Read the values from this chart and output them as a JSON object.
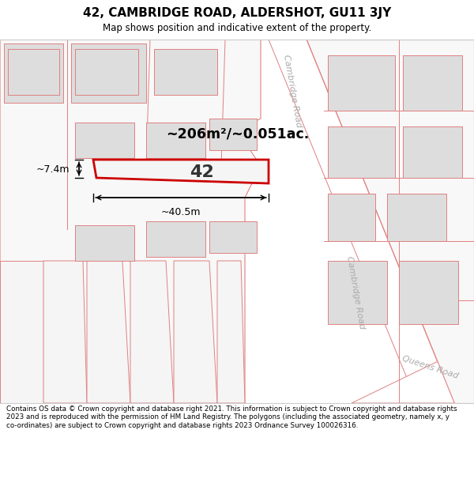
{
  "title_line1": "42, CAMBRIDGE ROAD, ALDERSHOT, GU11 3JY",
  "title_line2": "Map shows position and indicative extent of the property.",
  "footer": "Contains OS data © Crown copyright and database right 2021. This information is subject to Crown copyright and database rights 2023 and is reproduced with the permission of HM Land Registry. The polygons (including the associated geometry, namely x, y co-ordinates) are subject to Crown copyright and database rights 2023 Ordnance Survey 100026316.",
  "area_text": "~206m²/~0.051ac.",
  "label_42": "42",
  "dim_width": "~40.5m",
  "dim_height": "~7.4m",
  "road_label_cambridge": "Cambridge Road",
  "road_label_queens": "Queens Road",
  "plot_edge": "#cc0000",
  "line_color": "#e08080",
  "bg_color": "#ffffff",
  "map_bg": "#ffffff"
}
